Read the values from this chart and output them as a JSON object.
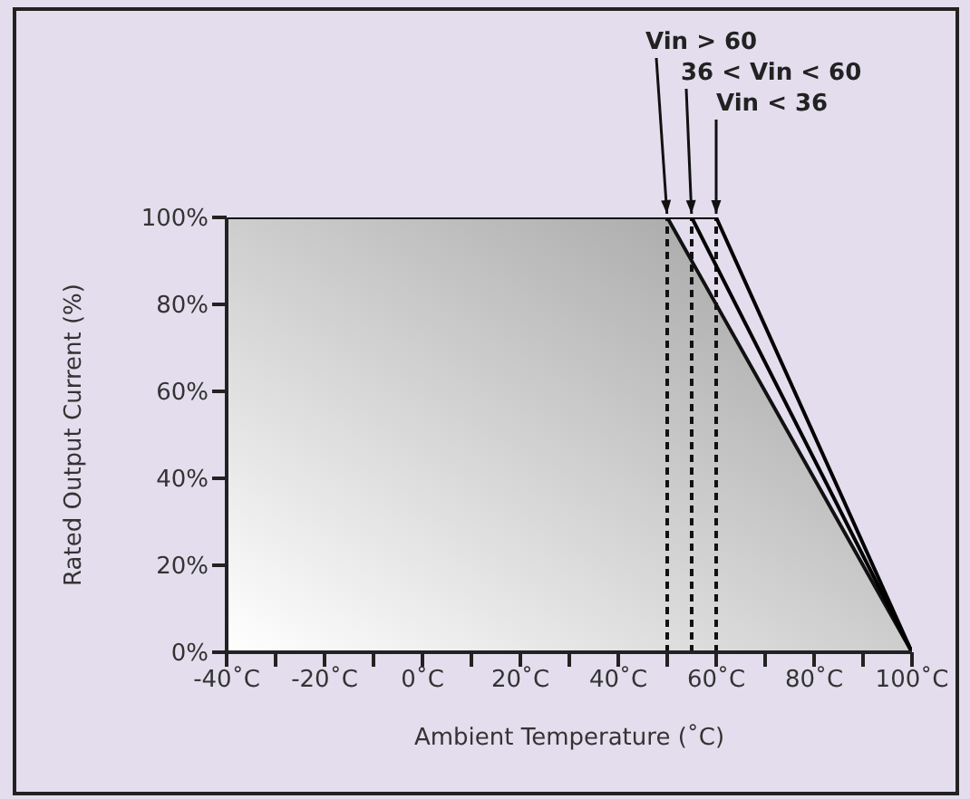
{
  "chart_data": {
    "type": "line",
    "xlabel": "Ambient Temperature (˚C)",
    "ylabel": "Rated Output Current (%)",
    "series": [
      {
        "name": "Vin > 60",
        "type": "area",
        "color": "#9c9c9c",
        "x": [
          -40,
          50,
          100
        ],
        "values": [
          100,
          100,
          0
        ]
      },
      {
        "name": "36 < Vin < 60",
        "color": "#000000",
        "x": [
          50,
          55,
          100
        ],
        "values": [
          100,
          100,
          0
        ]
      },
      {
        "name": "Vin < 36",
        "color": "#000000",
        "x": [
          55,
          60,
          100
        ],
        "values": [
          100,
          100,
          0
        ]
      }
    ],
    "xlim": [
      -40,
      100
    ],
    "xticks": [
      {
        "value": -40,
        "label": "-40˚C"
      },
      {
        "value": -30,
        "label": null
      },
      {
        "value": -20,
        "label": "-20˚C"
      },
      {
        "value": -10,
        "label": null
      },
      {
        "value": 0,
        "label": "0˚C"
      },
      {
        "value": 10,
        "label": null
      },
      {
        "value": 20,
        "label": "20˚C"
      },
      {
        "value": 30,
        "label": null
      },
      {
        "value": 40,
        "label": "40˚C"
      },
      {
        "value": 50,
        "label": null
      },
      {
        "value": 60,
        "label": "60˚C"
      },
      {
        "value": 70,
        "label": null
      },
      {
        "value": 80,
        "label": "80˚C"
      },
      {
        "value": 90,
        "label": null
      },
      {
        "value": 100,
        "label": "100˚C"
      }
    ],
    "ylim": [
      0,
      100
    ],
    "yticks": [
      {
        "value": 0,
        "label": "0%"
      },
      {
        "value": 20,
        "label": "20%"
      },
      {
        "value": 40,
        "label": "40%"
      },
      {
        "value": 60,
        "label": "60%"
      },
      {
        "value": 80,
        "label": "80%"
      },
      {
        "value": 100,
        "label": "100%"
      }
    ],
    "ref_lines": [
      {
        "axis": "x",
        "value": 50,
        "color": "#111111",
        "line_style": "dashed"
      },
      {
        "axis": "x",
        "value": 55,
        "color": "#111111",
        "line_style": "dashed"
      },
      {
        "axis": "x",
        "value": 60,
        "color": "#111111",
        "line_style": "dashed"
      }
    ],
    "grid": false,
    "legend": false,
    "marker": "none",
    "line_style": "solid"
  }
}
